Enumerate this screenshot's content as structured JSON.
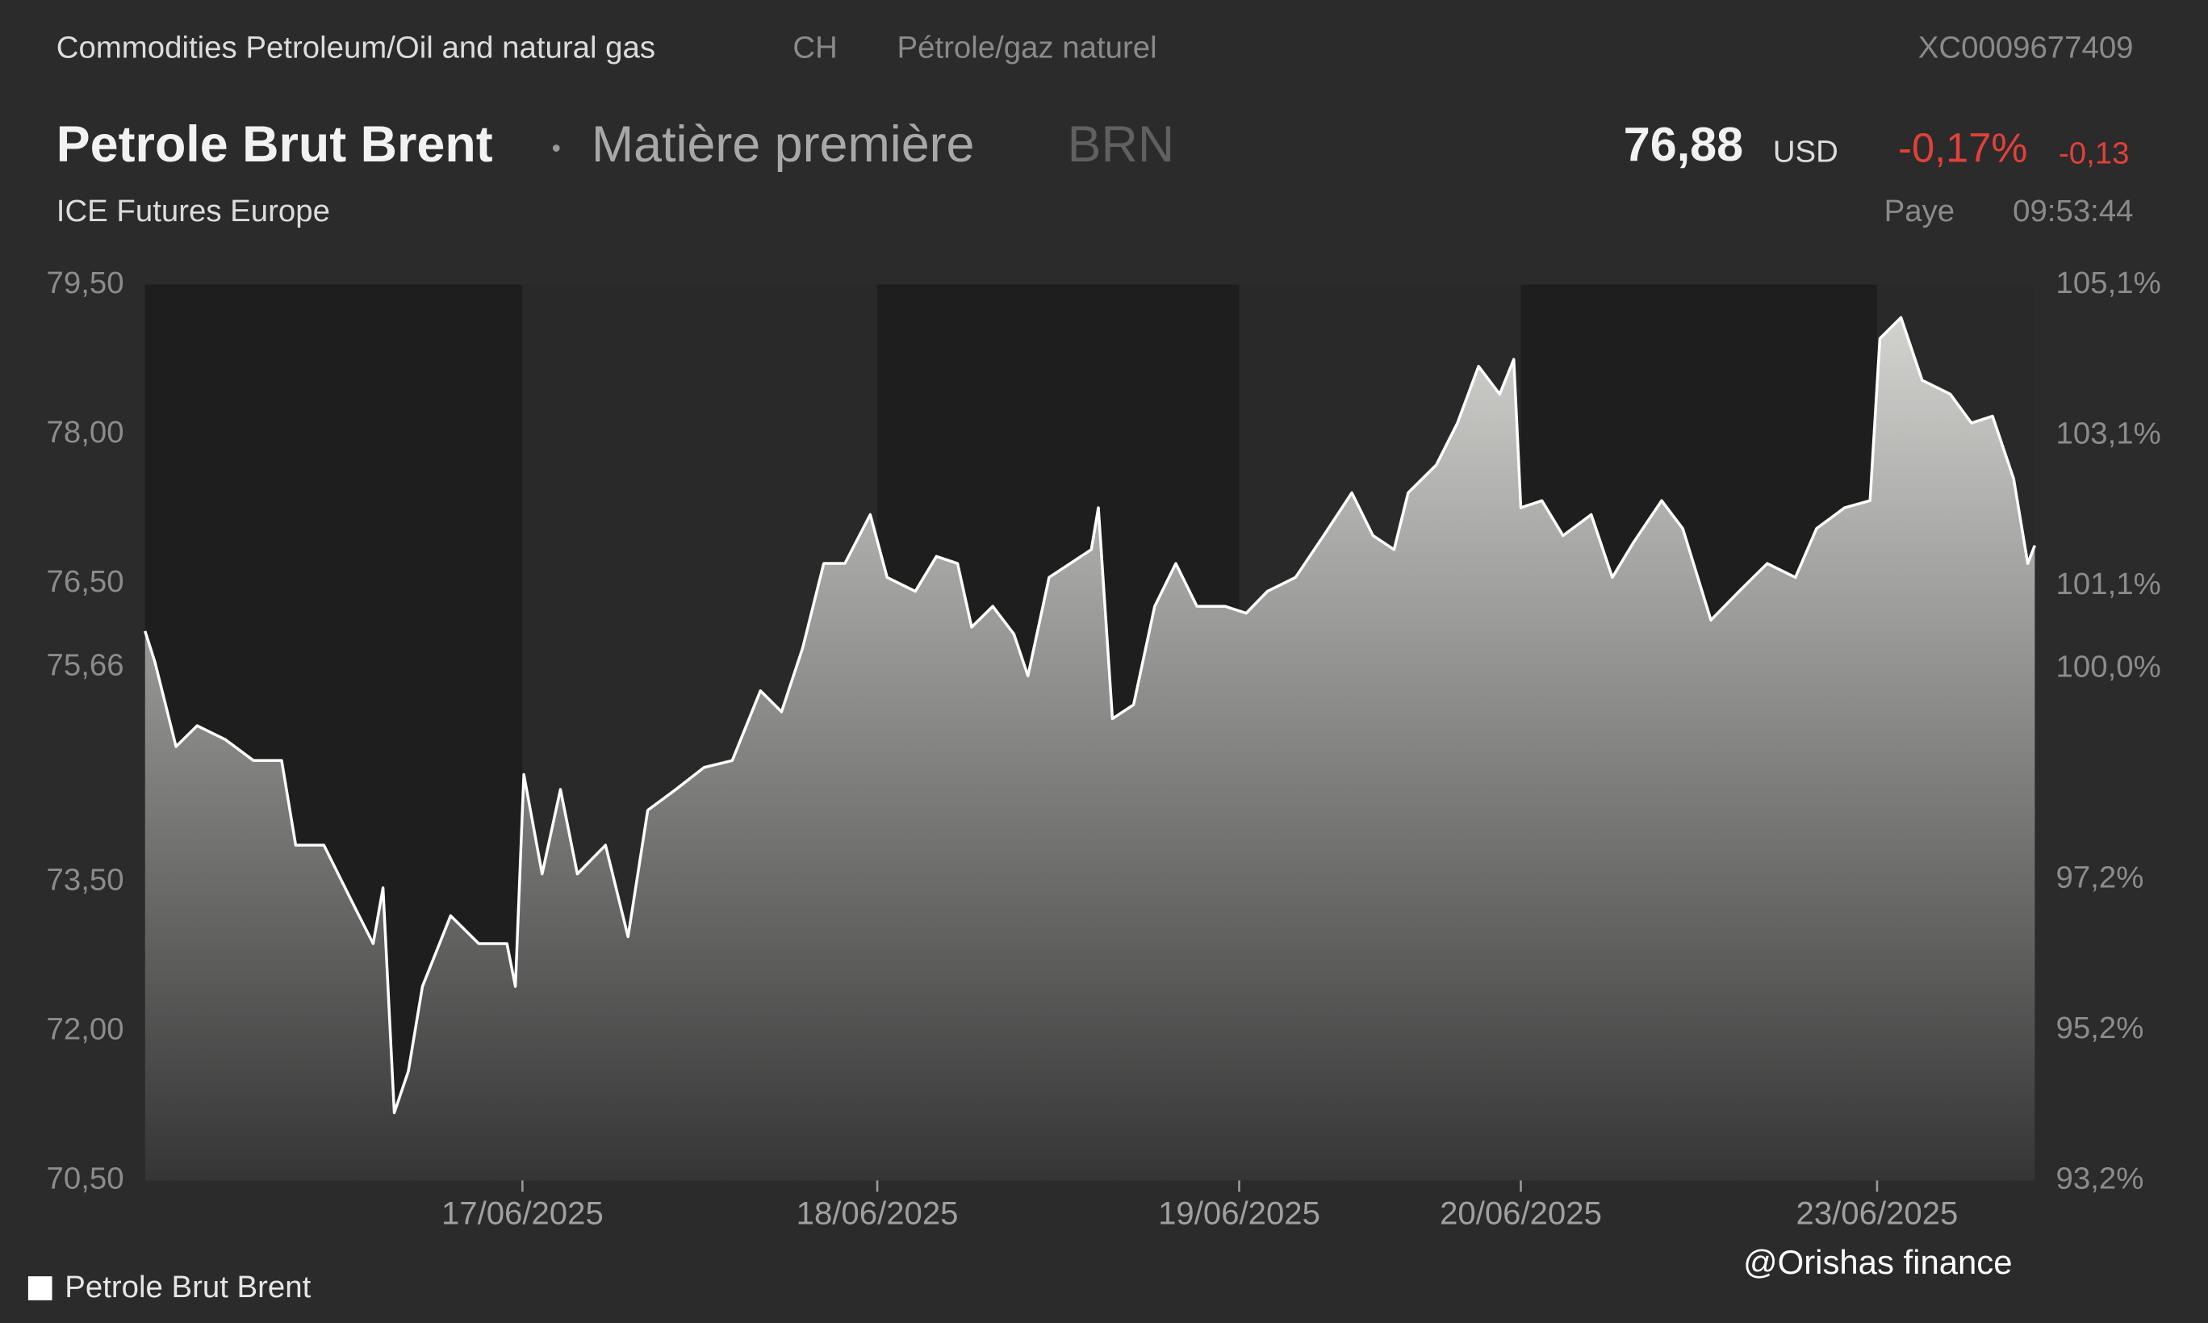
{
  "chart_data": {
    "type": "area",
    "breadcrumb": "Commodities Petroleum/Oil and natural gas",
    "country": "CH",
    "local_name": "Pétrole/gaz naturel",
    "isin": "XC0009677409",
    "title": "Petrole Brut Brent",
    "subtitle": "Matière première",
    "symbol": "BRN",
    "exchange": "ICE Futures Europe",
    "quote": {
      "price": "76,88",
      "currency": "USD",
      "change_pct": "-0,17%",
      "change": "-0,13",
      "status": "Paye",
      "time": "09:53:44"
    },
    "watermark": "@Orishas finance",
    "x": [
      0,
      7,
      22,
      37,
      57,
      77,
      97,
      107,
      127,
      147,
      162,
      169,
      177,
      187,
      197,
      217,
      237,
      257,
      263,
      269,
      282,
      295,
      307,
      327,
      343,
      357,
      377,
      397,
      417,
      437,
      452,
      467,
      482,
      497,
      515,
      527,
      547,
      562,
      577,
      587,
      602,
      617,
      627,
      642,
      657,
      672,
      677,
      687,
      702,
      717,
      732,
      747,
      767,
      782,
      797,
      817,
      837,
      857,
      872,
      887,
      897,
      917,
      932,
      947,
      962,
      972,
      977,
      992,
      1007,
      1027,
      1042,
      1057,
      1077,
      1092,
      1112,
      1132,
      1152,
      1172,
      1187,
      1207,
      1225,
      1232,
      1247,
      1262,
      1282,
      1297,
      1312,
      1327,
      1337,
      1342
    ],
    "xlim": [
      0,
      1342
    ],
    "xticks": [
      {
        "value": 268,
        "label": "17/06/2025"
      },
      {
        "value": 520,
        "label": "18/06/2025"
      },
      {
        "value": 777,
        "label": "19/06/2025"
      },
      {
        "value": 977,
        "label": "20/06/2025"
      },
      {
        "value": 1230,
        "label": "23/06/2025"
      }
    ],
    "series": [
      {
        "name": "Petrole Brut Brent",
        "color": "#ffffff",
        "values": [
          76.02,
          75.71,
          74.86,
          75.07,
          74.93,
          74.72,
          74.72,
          73.87,
          73.87,
          73.3,
          72.88,
          73.44,
          71.18,
          71.6,
          72.45,
          73.16,
          72.88,
          72.88,
          72.45,
          74.58,
          73.58,
          74.43,
          73.58,
          73.87,
          72.95,
          74.22,
          74.43,
          74.65,
          74.72,
          75.42,
          75.21,
          75.85,
          76.7,
          76.7,
          77.19,
          76.56,
          76.42,
          76.77,
          76.7,
          76.06,
          76.27,
          75.99,
          75.57,
          76.56,
          76.7,
          76.84,
          77.26,
          75.14,
          75.28,
          76.27,
          76.7,
          76.27,
          76.27,
          76.2,
          76.42,
          76.56,
          76.98,
          77.41,
          76.98,
          76.84,
          77.41,
          77.69,
          78.11,
          78.68,
          78.4,
          78.75,
          77.26,
          77.33,
          76.98,
          77.19,
          76.56,
          76.91,
          77.33,
          77.05,
          76.13,
          76.42,
          76.7,
          76.56,
          77.05,
          77.26,
          77.33,
          78.96,
          79.17,
          78.54,
          78.4,
          78.11,
          78.18,
          77.55,
          76.7,
          76.88
        ]
      }
    ],
    "ylim": [
      70.5,
      79.5
    ],
    "yticks": [
      {
        "value": 70.5,
        "label": "70,50"
      },
      {
        "value": 72,
        "label": "72,00"
      },
      {
        "value": 73.5,
        "label": "73,50"
      },
      {
        "value": 75.66,
        "label": "75,66"
      },
      {
        "value": 76.5,
        "label": "76,50"
      },
      {
        "value": 78,
        "label": "78,00"
      },
      {
        "value": 79.5,
        "label": "79,50"
      }
    ],
    "y2lim": [
      93.2,
      105.1
    ],
    "y2ticks": [
      {
        "value": 93.2,
        "label": "93,2%"
      },
      {
        "value": 95.2,
        "label": "95,2%"
      },
      {
        "value": 97.2,
        "label": "97,2%"
      },
      {
        "value": 100,
        "label": "100,0%"
      },
      {
        "value": 101.1,
        "label": "101,1%"
      },
      {
        "value": 103.1,
        "label": "103,1%"
      },
      {
        "value": 105.1,
        "label": "105,1%"
      }
    ]
  }
}
